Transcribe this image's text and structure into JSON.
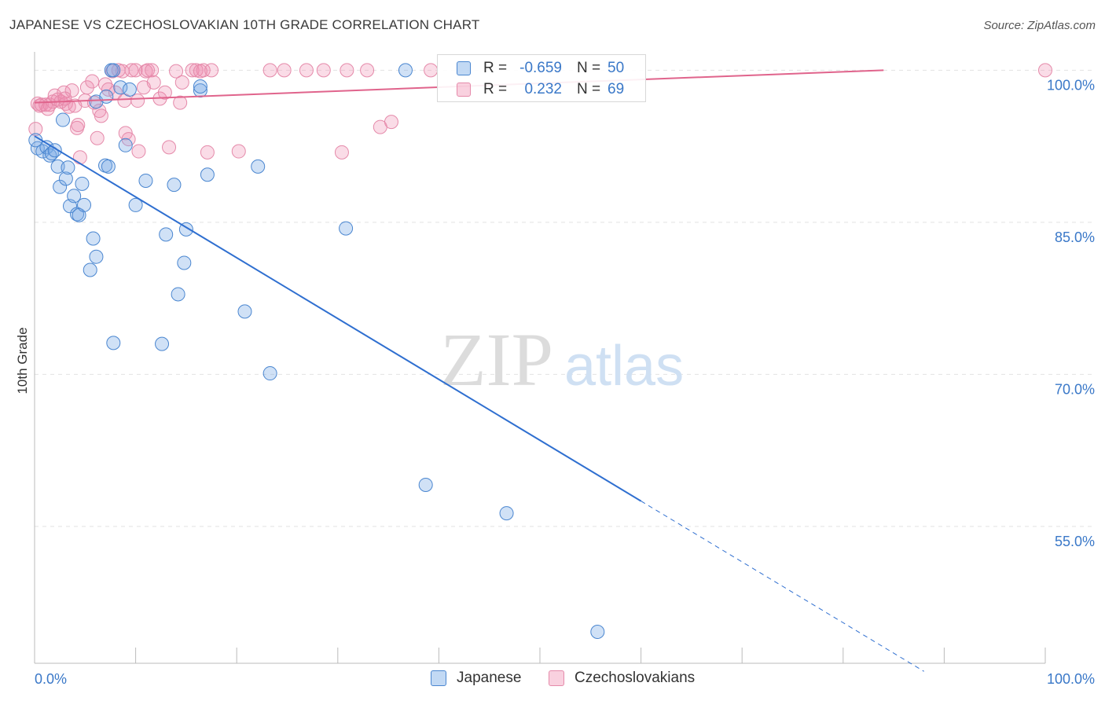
{
  "header": {
    "title": "JAPANESE VS CZECHOSLOVAKIAN 10TH GRADE CORRELATION CHART",
    "source": "Source: ZipAtlas.com"
  },
  "watermark": {
    "zip": "ZIP",
    "atlas": "atlas"
  },
  "legend_top": {
    "rows": [
      {
        "r_label": "R =",
        "r_value": "-0.659",
        "n_label": "N =",
        "n_value": "50"
      },
      {
        "r_label": "R =",
        "r_value": "0.232",
        "n_label": "N =",
        "n_value": "69"
      }
    ]
  },
  "legend_bottom": {
    "items": [
      "Japanese",
      "Czechoslovakians"
    ]
  },
  "colors": {
    "japanese_fill": "rgba(120,170,230,0.35)",
    "japanese_stroke": "#4a86d0",
    "japanese_line": "#2f6fd0",
    "czech_fill": "rgba(240,140,175,0.30)",
    "czech_stroke": "#e58aaa",
    "czech_line": "#e0648c",
    "value_text": "#3a78c8",
    "grid": "#e2e2e2"
  },
  "chart_data": {
    "type": "scatter",
    "title": "JAPANESE VS CZECHOSLOVAKIAN 10TH GRADE CORRELATION CHART",
    "xlabel": "",
    "ylabel": "10th Grade",
    "xlim": [
      0,
      100
    ],
    "ylim": [
      41.5,
      101.5
    ],
    "x_tick_labels": [
      "0.0%",
      "100.0%"
    ],
    "y_ticks": [
      55,
      70,
      85,
      100
    ],
    "y_tick_labels": [
      "55.0%",
      "70.0%",
      "85.0%",
      "100.0%"
    ],
    "grid": true,
    "series": [
      {
        "name": "Japanese",
        "R": -0.659,
        "N": 50,
        "trend": {
          "x0": 0,
          "y0": 93.5,
          "x1": 60,
          "y1": 57.5,
          "dashed_to_x": 88
        },
        "points": [
          [
            0.3,
            92.3
          ],
          [
            0.8,
            92.0
          ],
          [
            1.2,
            92.4
          ],
          [
            1.5,
            91.6
          ],
          [
            1.7,
            91.8
          ],
          [
            2.0,
            92.1
          ],
          [
            2.3,
            90.5
          ],
          [
            2.5,
            88.5
          ],
          [
            2.8,
            95.1
          ],
          [
            3.1,
            89.3
          ],
          [
            3.3,
            90.4
          ],
          [
            3.5,
            86.6
          ],
          [
            3.9,
            87.6
          ],
          [
            4.2,
            85.8
          ],
          [
            4.4,
            85.7
          ],
          [
            4.7,
            88.8
          ],
          [
            4.9,
            86.7
          ],
          [
            5.5,
            80.3
          ],
          [
            5.8,
            83.4
          ],
          [
            6.1,
            81.6
          ],
          [
            6.1,
            96.9
          ],
          [
            7.0,
            90.6
          ],
          [
            7.1,
            97.4
          ],
          [
            7.3,
            90.5
          ],
          [
            7.6,
            100.0
          ],
          [
            7.8,
            100.0
          ],
          [
            7.8,
            73.1
          ],
          [
            8.5,
            98.3
          ],
          [
            9.0,
            92.6
          ],
          [
            9.4,
            98.1
          ],
          [
            10.0,
            86.7
          ],
          [
            11.0,
            89.1
          ],
          [
            12.6,
            73.0
          ],
          [
            13.0,
            83.8
          ],
          [
            13.8,
            88.7
          ],
          [
            14.2,
            77.9
          ],
          [
            14.8,
            81.0
          ],
          [
            15.0,
            84.3
          ],
          [
            16.4,
            98.0
          ],
          [
            16.4,
            98.4
          ],
          [
            17.1,
            89.7
          ],
          [
            20.8,
            76.2
          ],
          [
            22.1,
            90.5
          ],
          [
            23.3,
            70.1
          ],
          [
            30.8,
            84.4
          ],
          [
            36.7,
            100.0
          ],
          [
            38.7,
            59.1
          ],
          [
            46.7,
            56.3
          ],
          [
            55.7,
            44.6
          ],
          [
            0.1,
            93.1
          ]
        ]
      },
      {
        "name": "Czechoslovakians",
        "R": 0.232,
        "N": 69,
        "trend": {
          "x0": 0,
          "y0": 96.8,
          "x1": 84,
          "y1": 100.0
        },
        "points": [
          [
            0.3,
            96.7
          ],
          [
            0.7,
            96.6
          ],
          [
            1.1,
            96.6
          ],
          [
            1.5,
            96.6
          ],
          [
            1.8,
            96.9
          ],
          [
            2.0,
            97.5
          ],
          [
            2.3,
            97.1
          ],
          [
            2.6,
            96.9
          ],
          [
            2.9,
            97.8
          ],
          [
            3.1,
            96.7
          ],
          [
            3.4,
            96.4
          ],
          [
            3.7,
            98.0
          ],
          [
            4.0,
            96.5
          ],
          [
            4.2,
            94.3
          ],
          [
            4.3,
            94.6
          ],
          [
            4.5,
            91.4
          ],
          [
            5.0,
            97.0
          ],
          [
            5.2,
            98.3
          ],
          [
            5.7,
            98.9
          ],
          [
            6.2,
            93.3
          ],
          [
            6.4,
            96.0
          ],
          [
            6.6,
            95.5
          ],
          [
            7.0,
            98.6
          ],
          [
            7.3,
            98.1
          ],
          [
            7.7,
            99.9
          ],
          [
            8.0,
            97.8
          ],
          [
            8.3,
            100.0
          ],
          [
            8.7,
            99.9
          ],
          [
            8.9,
            97.0
          ],
          [
            9.0,
            93.8
          ],
          [
            9.3,
            93.2
          ],
          [
            9.6,
            100.0
          ],
          [
            10.0,
            100.0
          ],
          [
            10.2,
            97.0
          ],
          [
            10.3,
            92.0
          ],
          [
            10.8,
            98.3
          ],
          [
            11.0,
            99.9
          ],
          [
            11.2,
            100.0
          ],
          [
            11.6,
            100.0
          ],
          [
            11.8,
            98.8
          ],
          [
            12.4,
            97.2
          ],
          [
            12.9,
            97.8
          ],
          [
            13.3,
            92.4
          ],
          [
            14.0,
            99.9
          ],
          [
            14.4,
            96.8
          ],
          [
            14.6,
            98.8
          ],
          [
            15.6,
            100.0
          ],
          [
            16.0,
            100.0
          ],
          [
            16.7,
            100.0
          ],
          [
            17.1,
            91.9
          ],
          [
            17.5,
            100.0
          ],
          [
            20.2,
            92.0
          ],
          [
            23.3,
            100.0
          ],
          [
            24.7,
            100.0
          ],
          [
            26.9,
            100.0
          ],
          [
            28.6,
            100.0
          ],
          [
            30.4,
            91.9
          ],
          [
            30.9,
            100.0
          ],
          [
            32.9,
            100.0
          ],
          [
            34.2,
            94.4
          ],
          [
            35.3,
            94.9
          ],
          [
            39.2,
            100.0
          ],
          [
            100.0,
            100.0
          ],
          [
            16.4,
            99.9
          ],
          [
            0.5,
            96.5
          ],
          [
            1.3,
            96.2
          ],
          [
            3.0,
            97.2
          ],
          [
            5.9,
            96.8
          ],
          [
            0.1,
            94.2
          ]
        ]
      }
    ]
  }
}
